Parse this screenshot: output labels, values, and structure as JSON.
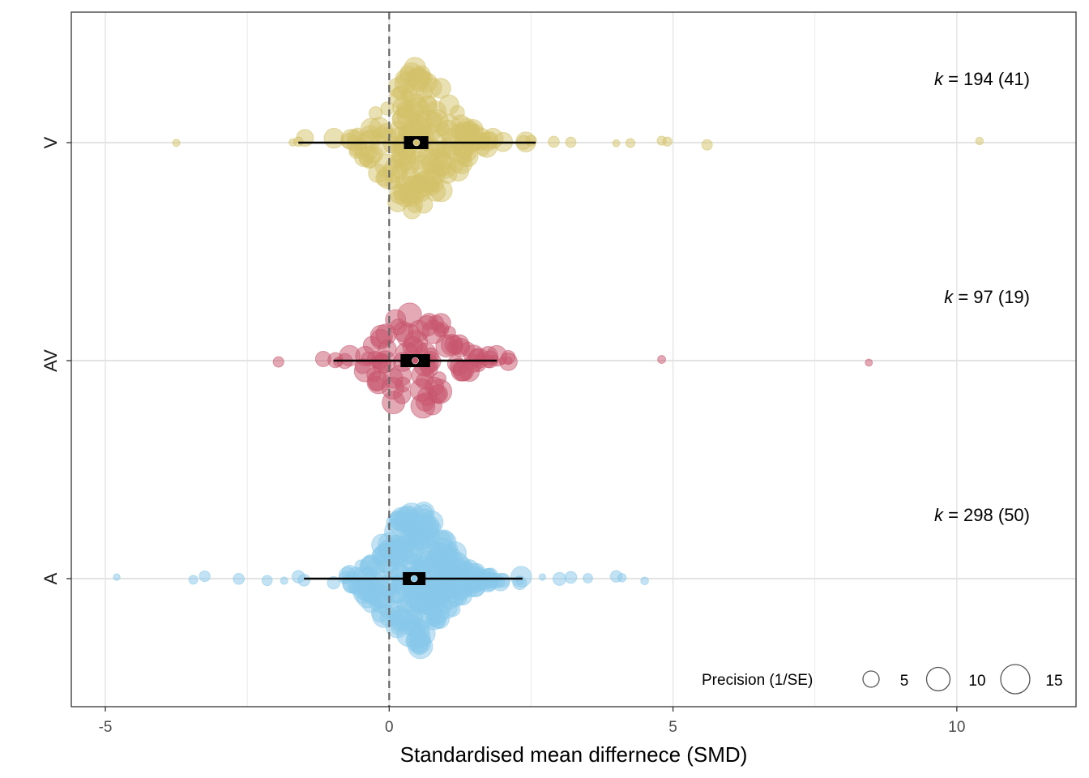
{
  "chart_data": {
    "type": "scatter",
    "subtype": "orchard-plot",
    "xlabel": "Standardised mean differnece (SMD)",
    "ylabel": "",
    "xlim": [
      -5.6,
      12.1
    ],
    "x_ticks": [
      -5,
      0,
      5,
      10
    ],
    "x_tick_labels": [
      "-5",
      "0",
      "5",
      "10"
    ],
    "reference_line_x": 0,
    "grid": true,
    "categories": [
      "V",
      "AV",
      "A"
    ],
    "groups": [
      {
        "name": "V",
        "color": "#D4C26A",
        "k": "194",
        "studies": "(41)",
        "estimate": 0.48,
        "ci": [
          0.26,
          0.69
        ],
        "pi": [
          -1.6,
          2.58
        ],
        "extreme_points": [
          -3.75,
          -1.7,
          -1.6,
          2.5,
          2.9,
          3.2,
          4.0,
          4.25,
          4.8,
          4.9,
          5.6,
          10.4
        ],
        "spread": 2.6
      },
      {
        "name": "AV",
        "color": "#C8566E",
        "k": "97",
        "studies": "(19)",
        "estimate": 0.46,
        "ci": [
          0.2,
          0.72
        ],
        "pi": [
          -0.98,
          1.9
        ],
        "extreme_points": [
          -1.95,
          -0.9,
          1.85,
          2.0,
          2.1,
          4.8,
          8.45
        ],
        "spread": 1.9
      },
      {
        "name": "A",
        "color": "#87C8EA",
        "k": "298",
        "studies": "(50)",
        "estimate": 0.44,
        "ci": [
          0.24,
          0.64
        ],
        "pi": [
          -1.5,
          2.35
        ],
        "extreme_points": [
          -4.8,
          -3.45,
          -3.25,
          -2.65,
          -2.15,
          -1.85,
          -1.6,
          -1.5,
          2.3,
          2.7,
          3.0,
          3.2,
          3.5,
          4.0,
          4.1,
          4.5
        ],
        "spread": 2.4
      }
    ],
    "legend": {
      "title": "Precision (1/SE)",
      "position": "bottom-right",
      "values": [
        5,
        10,
        15
      ]
    }
  }
}
